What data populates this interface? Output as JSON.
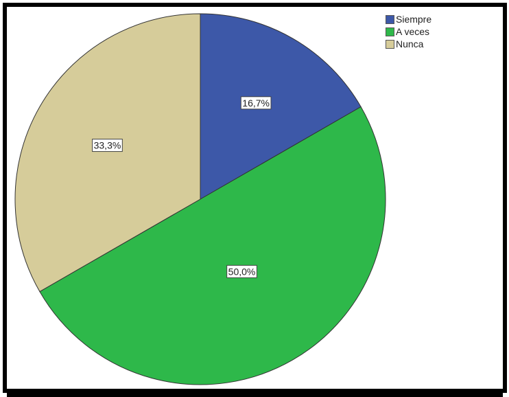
{
  "chart_data": {
    "type": "pie",
    "title": "",
    "legend_placement": "top-right",
    "slices": [
      {
        "name": "Siempre",
        "value": 16.7,
        "label": "16,7%",
        "color": "#3d58a8"
      },
      {
        "name": "A veces",
        "value": 50.0,
        "label": "50,0%",
        "color": "#2eb84a"
      },
      {
        "name": "Nunca",
        "value": 33.3,
        "label": "33,3%",
        "color": "#d6cc9a"
      }
    ]
  }
}
